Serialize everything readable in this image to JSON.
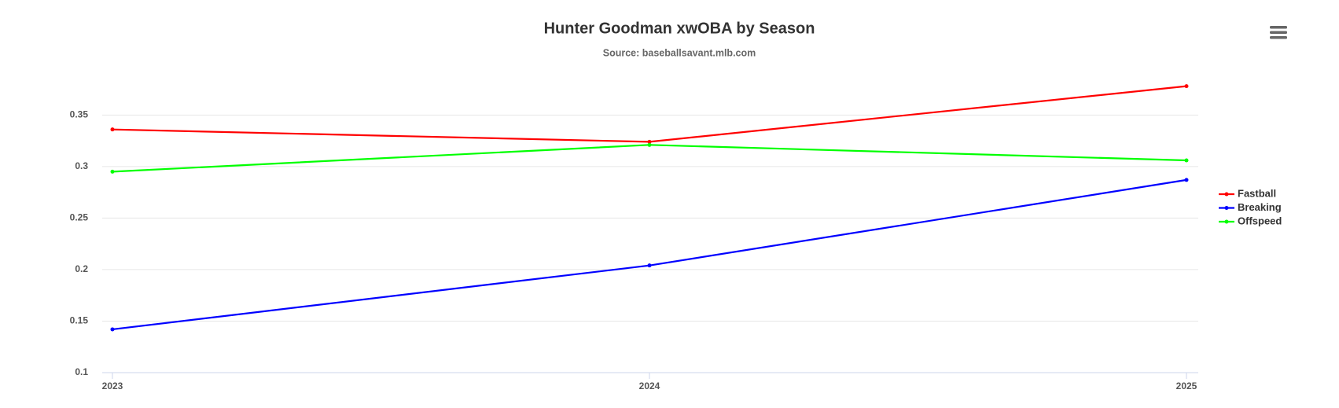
{
  "chart_data": {
    "type": "line",
    "title": "Hunter Goodman xwOBA by Season",
    "subtitle": "Source: baseballsavant.mlb.com",
    "categories": [
      "2023",
      "2024",
      "2025"
    ],
    "series": [
      {
        "name": "Fastball",
        "color": "#ff0000",
        "values": [
          0.336,
          0.324,
          0.378
        ]
      },
      {
        "name": "Breaking",
        "color": "#0000ff",
        "values": [
          0.142,
          0.204,
          0.287
        ]
      },
      {
        "name": "Offspeed",
        "color": "#00ff00",
        "values": [
          0.295,
          0.321,
          0.306
        ]
      }
    ],
    "ylim": [
      0.1,
      0.38
    ],
    "yticks": [
      0.1,
      0.15,
      0.2,
      0.25,
      0.3,
      0.35
    ],
    "grid": true,
    "legend": "right"
  }
}
